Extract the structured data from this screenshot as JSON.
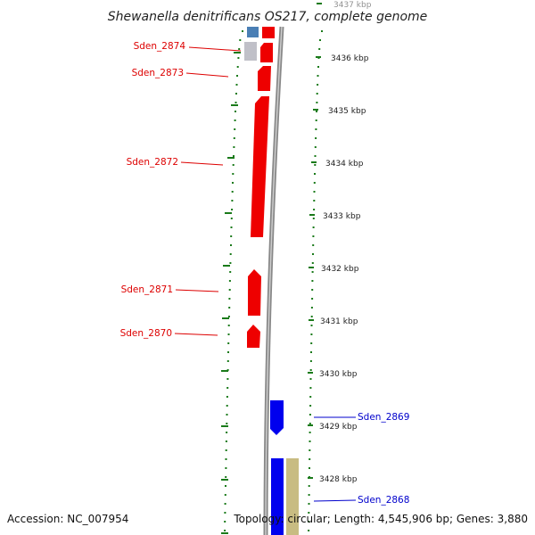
{
  "title": "Shewanella denitrificans OS217, complete genome",
  "footer": {
    "accession": "Accession: NC_007954",
    "topology": "Topology: circular; Length: 4,545,906 bp; Genes: 3,880"
  },
  "colors": {
    "reverse_cds": "#ee0000",
    "forward_cds": "#0000ee",
    "ruler_tick": "#1a7a1a",
    "backbone": "#888888",
    "gray_feature": "#c0c0c8",
    "steelblue_feature": "#4a7fb5",
    "tan_feature": "#c8bc82"
  },
  "ruler": {
    "unit": "kbp",
    "ticks": [
      {
        "kbp": 3437,
        "label": "3437 kbp"
      },
      {
        "kbp": 3436,
        "label": "3436 kbp"
      },
      {
        "kbp": 3435,
        "label": "3435 kbp"
      },
      {
        "kbp": 3434,
        "label": "3434 kbp"
      },
      {
        "kbp": 3433,
        "label": "3433 kbp"
      },
      {
        "kbp": 3432,
        "label": "3432 kbp"
      },
      {
        "kbp": 3431,
        "label": "3431 kbp"
      },
      {
        "kbp": 3430,
        "label": "3430 kbp"
      },
      {
        "kbp": 3429,
        "label": "3429 kbp"
      },
      {
        "kbp": 3428,
        "label": "3428 kbp"
      }
    ]
  },
  "genes": [
    {
      "name": "Sden_2874",
      "strand": "reverse"
    },
    {
      "name": "Sden_2873",
      "strand": "reverse"
    },
    {
      "name": "Sden_2872",
      "strand": "reverse"
    },
    {
      "name": "Sden_2871",
      "strand": "reverse"
    },
    {
      "name": "Sden_2870",
      "strand": "reverse"
    },
    {
      "name": "Sden_2869",
      "strand": "forward"
    },
    {
      "name": "Sden_2868",
      "strand": "forward"
    }
  ]
}
